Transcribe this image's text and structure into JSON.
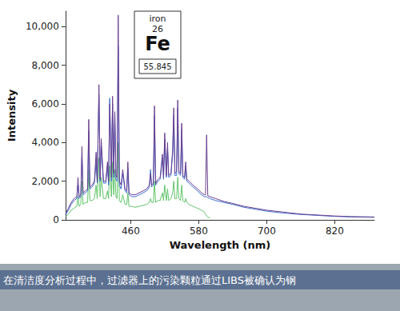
{
  "chart_data": {
    "type": "line",
    "xlabel": "Wavelength (nm)",
    "ylabel": "Intensity",
    "xlim": [
      345,
      890
    ],
    "xticks": [
      460,
      580,
      700,
      820
    ],
    "ylim": [
      0,
      10800
    ],
    "yticks": [
      0,
      {
        "value": 2000,
        "label": "2,000"
      },
      {
        "value": 4000,
        "label": "4,000"
      },
      {
        "value": 6000,
        "label": "6,000"
      },
      {
        "value": 8000,
        "label": "8,000"
      },
      {
        "value": 10000,
        "label": "10,000"
      }
    ],
    "grid": false,
    "annotation": {
      "name": "iron",
      "number": 26,
      "symbol": "Fe",
      "mass": 55.845
    },
    "caption": "在清洁度分析过程中，过滤器上的污染颗粒通过LIBS被确认为钢",
    "x": [
      345,
      350,
      355,
      360,
      365,
      367,
      369,
      372,
      374,
      376,
      380,
      384,
      386,
      388,
      392,
      396,
      399,
      401,
      404,
      406,
      408,
      412,
      416,
      419,
      421,
      423,
      426,
      428,
      430,
      432,
      434,
      436,
      438,
      440,
      443,
      446,
      450,
      453,
      455,
      457,
      462,
      468,
      475,
      482,
      488,
      493,
      495,
      497,
      500,
      502,
      504,
      508,
      512,
      516,
      518,
      520,
      523,
      525,
      527,
      531,
      534,
      536,
      538,
      541,
      543,
      545,
      548,
      550,
      552,
      555,
      557,
      559,
      563,
      570,
      578,
      585,
      590,
      592,
      594,
      596,
      600,
      610,
      625,
      640,
      660,
      680,
      700,
      730,
      760,
      790,
      820,
      850,
      890
    ],
    "series": [
      {
        "color": "#62c46a",
        "values": [
          150,
          300,
          500,
          600,
          700,
          1200,
          700,
          800,
          2000,
          800,
          900,
          900,
          2600,
          1000,
          1000,
          1100,
          1800,
          1100,
          3200,
          1200,
          2200,
          1100,
          1100,
          1500,
          1100,
          2800,
          1200,
          3000,
          1300,
          2600,
          1200,
          1100,
          4000,
          1000,
          900,
          1300,
          800,
          800,
          1400,
          700,
          700,
          650,
          700,
          750,
          800,
          900,
          1100,
          900,
          900,
          2000,
          900,
          1000,
          1000,
          1400,
          1000,
          1800,
          1000,
          1600,
          1000,
          1100,
          1400,
          2000,
          1100,
          1100,
          2200,
          1100,
          1000,
          1800,
          1000,
          900,
          1100,
          900,
          800,
          700,
          600,
          500,
          400,
          300,
          200,
          150,
          100,
          null,
          null,
          null,
          null,
          null,
          null,
          null,
          null,
          null,
          null,
          null,
          null
        ]
      },
      {
        "color": "#3f6fd0",
        "values": [
          250,
          500,
          800,
          1000,
          1100,
          1800,
          1100,
          1200,
          3200,
          1300,
          1400,
          1500,
          4600,
          1600,
          1700,
          1900,
          3000,
          1900,
          6500,
          2000,
          3800,
          1900,
          1900,
          2800,
          1800,
          6300,
          2000,
          6000,
          2200,
          5300,
          2100,
          2000,
          9000,
          1800,
          1600,
          2400,
          1500,
          1400,
          2700,
          1300,
          1200,
          1200,
          1300,
          1400,
          1500,
          1700,
          2600,
          1700,
          1800,
          5400,
          1800,
          2000,
          2100,
          3200,
          2100,
          4200,
          2200,
          3700,
          2200,
          2300,
          3400,
          5400,
          2300,
          2300,
          5800,
          2400,
          2300,
          4700,
          2200,
          2100,
          2800,
          2000,
          1900,
          1700,
          1500,
          1300,
          1200,
          1200,
          1200,
          1150,
          1100,
          1000,
          900,
          800,
          650,
          550,
          450,
          350,
          280,
          230,
          180,
          150,
          130
        ]
      },
      {
        "color": "#6b3f8e",
        "values": [
          300,
          600,
          900,
          1100,
          1200,
          2200,
          1200,
          1300,
          3800,
          1400,
          1500,
          1600,
          5200,
          1700,
          1800,
          2000,
          3500,
          2000,
          7000,
          2100,
          4200,
          2000,
          2000,
          3000,
          2000,
          6000,
          2200,
          6400,
          2400,
          5600,
          2300,
          2200,
          10600,
          2000,
          1800,
          2600,
          1600,
          1500,
          3000,
          1400,
          1300,
          1300,
          1400,
          1500,
          1600,
          1800,
          2400,
          1800,
          1900,
          5900,
          1900,
          2100,
          2200,
          3400,
          2200,
          4500,
          2300,
          4000,
          2300,
          2400,
          3600,
          5800,
          2400,
          2500,
          6200,
          2500,
          2400,
          5000,
          2300,
          2200,
          3000,
          2100,
          2000,
          1800,
          1600,
          1400,
          1300,
          1300,
          4400,
          1250,
          1200,
          1100,
          950,
          850,
          700,
          600,
          500,
          400,
          300,
          250,
          200,
          170,
          150
        ]
      }
    ]
  }
}
